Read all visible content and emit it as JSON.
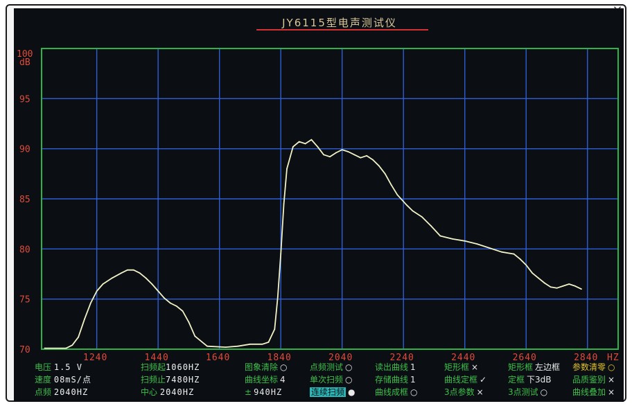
{
  "window": {
    "close_glyph": "×"
  },
  "instrument_title": "JY6115型电声测试仪",
  "chart_data": {
    "type": "line",
    "title": "JY6115型电声测试仪",
    "xlabel": "HZ",
    "ylabel": "dB",
    "x_tick_labels": [
      "1240",
      "1440",
      "1640",
      "1840",
      "2040",
      "2240",
      "2440",
      "2640",
      "2840",
      "HZ"
    ],
    "y_tick_labels": [
      "100 dB",
      "95",
      "90",
      "85",
      "80",
      "75",
      "70"
    ],
    "xlim": [
      1060,
      2940
    ],
    "ylim": [
      70,
      100
    ],
    "grid": true,
    "series": [
      {
        "color": "#f2f2c8",
        "x": [
          1070,
          1140,
          1160,
          1180,
          1200,
          1220,
          1240,
          1260,
          1290,
          1320,
          1340,
          1360,
          1380,
          1400,
          1420,
          1440,
          1460,
          1480,
          1500,
          1520,
          1540,
          1560,
          1600,
          1660,
          1700,
          1740,
          1780,
          1800,
          1820,
          1830,
          1840,
          1850,
          1860,
          1880,
          1900,
          1920,
          1940,
          1960,
          1970,
          1980,
          2000,
          2020,
          2040,
          2060,
          2080,
          2100,
          2120,
          2140,
          2160,
          2180,
          2200,
          2220,
          2250,
          2270,
          2300,
          2330,
          2360,
          2400,
          2440,
          2480,
          2520,
          2560,
          2600,
          2620,
          2640,
          2660,
          2680,
          2700,
          2720,
          2740,
          2760,
          2780,
          2800,
          2820
        ],
        "y": [
          70.1,
          70.1,
          70.4,
          71.2,
          73,
          74.6,
          75.8,
          76.5,
          77.1,
          77.6,
          77.9,
          77.9,
          77.6,
          77.1,
          76.5,
          75.8,
          75.1,
          74.6,
          74.3,
          73.8,
          72.7,
          71.3,
          70.3,
          70.2,
          70.3,
          70.5,
          70.5,
          70.7,
          72,
          75.2,
          79.5,
          84.5,
          88,
          90.2,
          90.7,
          90.5,
          90.9,
          90.2,
          89.8,
          89.4,
          89.2,
          89.6,
          89.9,
          89.7,
          89.4,
          89.1,
          89.3,
          88.9,
          88.3,
          87.5,
          86.4,
          85.4,
          84.4,
          83.8,
          83.2,
          82.3,
          81.3,
          81,
          80.8,
          80.5,
          80.1,
          79.7,
          79.5,
          79,
          78.4,
          77.6,
          77.1,
          76.6,
          76.2,
          76.1,
          76.3,
          76.5,
          76.3,
          76
        ]
      }
    ],
    "annotations": []
  },
  "status_panel": {
    "c1": [
      {
        "label": "电压",
        "value": "1.5  V"
      },
      {
        "label": "速度",
        "value": "08mS/点"
      },
      {
        "label": "点频",
        "value": "2040HZ"
      }
    ],
    "c2": [
      {
        "label": "扫频起",
        "value": "1060HZ"
      },
      {
        "label": "扫频止",
        "value": "7480HZ"
      },
      {
        "label": "中心",
        "value": "2040HZ"
      }
    ],
    "c3": [
      {
        "label": "图象清除",
        "mark": "○"
      },
      {
        "label": "曲线坐标",
        "mark": "4"
      },
      {
        "label": "±",
        "mark": "940HZ"
      }
    ],
    "c4": [
      {
        "label": "点频测试",
        "mark": "○"
      },
      {
        "label": "单次扫频",
        "mark": "○"
      },
      {
        "label": "连续扫频",
        "mark": "●"
      }
    ],
    "c5": [
      {
        "label": "读出曲线",
        "mark": "1"
      },
      {
        "label": "存储曲线",
        "mark": "1"
      },
      {
        "label": "曲线成框",
        "mark": "○"
      }
    ],
    "c6": [
      {
        "label": "矩形框",
        "mark": "×"
      },
      {
        "label": "曲线定框",
        "mark": "✓"
      },
      {
        "label": "3点参数",
        "mark": "×"
      }
    ],
    "c7": [
      {
        "label": "矩形框",
        "mark": "左边框"
      },
      {
        "label": "定框",
        "mark": "下3dB"
      },
      {
        "label": "3点测试",
        "mark": "○"
      }
    ],
    "c8": [
      {
        "label": "参数清零",
        "mark": "○"
      },
      {
        "label": "品质鉴别",
        "mark": "×"
      },
      {
        "label": "曲线叠加",
        "mark": "×"
      }
    ]
  }
}
